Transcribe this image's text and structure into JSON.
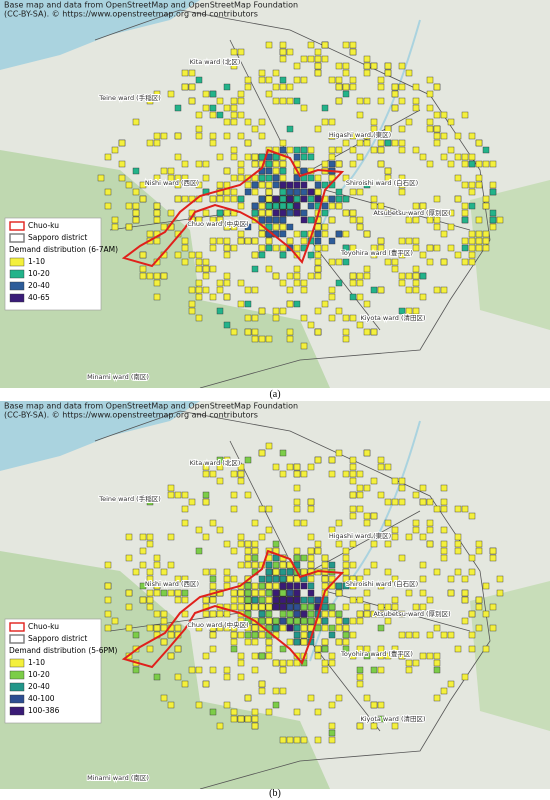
{
  "attribution": [
    "Base map and data from OpenStreetMap and OpenStreetMap Foundation",
    "(CC-BY-SA). © https://www.openstreetmap.org and contributors"
  ],
  "panels": [
    {
      "caption": "(a)",
      "wards": [
        "Kita ward (北区)",
        "Teine ward (手稲区)",
        "Higashi ward (東区)",
        "Nishi ward (西区)",
        "Shiroishi ward (白石区)",
        "Chuo ward (中央区)",
        "Atsubetsu ward (厚別区)",
        "Toyohira ward (豊平区)",
        "Kiyota ward (清田区)",
        "Minami ward (南区)"
      ],
      "legend": {
        "boundaries": [
          {
            "label": "Chuo-ku",
            "color": "#e0201b"
          },
          {
            "label": "Sapporo district",
            "color": "#777777"
          }
        ],
        "title": "Demand distribution (6-7AM)",
        "classes": [
          {
            "label": "1-10",
            "color": "#f4f03c"
          },
          {
            "label": "10-20",
            "color": "#22b38a"
          },
          {
            "label": "20-40",
            "color": "#2d5c99"
          },
          {
            "label": "40-65",
            "color": "#3a1c78"
          }
        ]
      }
    },
    {
      "caption": "(b)",
      "wards": [
        "Kita ward (北区)",
        "Teine ward (手稲区)",
        "Higashi ward (東区)",
        "Nishi ward (西区)",
        "Shiroishi ward (白石区)",
        "Chuo ward (中央区)",
        "Atsubetsu ward (厚別区)",
        "Toyohira ward (豊平区)",
        "Kiyota ward (清田区)",
        "Minami ward (南区)"
      ],
      "legend": {
        "boundaries": [
          {
            "label": "Chuo-ku",
            "color": "#e0201b"
          },
          {
            "label": "Sapporo district",
            "color": "#777777"
          }
        ],
        "title": "Demand distribution (5-6PM)",
        "classes": [
          {
            "label": "1-10",
            "color": "#f4f03c"
          },
          {
            "label": "10-20",
            "color": "#7ccd48"
          },
          {
            "label": "20-40",
            "color": "#23978a"
          },
          {
            "label": "40-100",
            "color": "#2e4e92"
          },
          {
            "label": "100-386",
            "color": "#3a1b76"
          }
        ]
      }
    }
  ]
}
